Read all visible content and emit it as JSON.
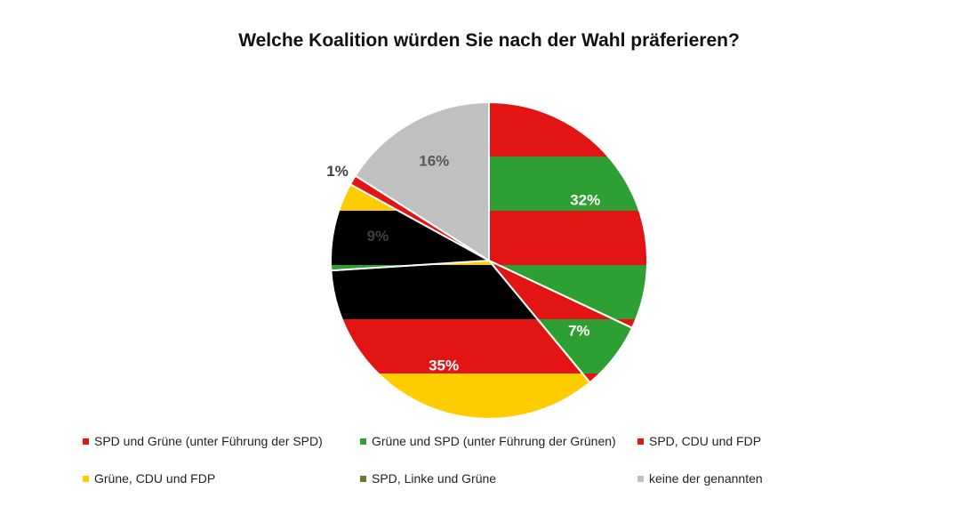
{
  "chart_data": {
    "type": "pie",
    "title": "Welche Koalition würden Sie nach der Wahl präferieren?",
    "labels": [
      "SPD und Grüne (unter Führung der SPD)",
      "Grüne und SPD (unter Führung der Grünen)",
      "SPD, CDU und FDP",
      "Grüne, CDU und FDP",
      "SPD, Linke und Grüne",
      "keine der genannten"
    ],
    "values": [
      32,
      7,
      35,
      9,
      1,
      16
    ],
    "data_labels": [
      "32%",
      "7%",
      "35%",
      "9%",
      "1%",
      "16%"
    ],
    "stripe_colors": [
      [
        "#e31414",
        "#2ea033"
      ],
      [
        "#2ea033",
        "#e31414"
      ],
      [
        "#000000",
        "#e31414",
        "#ffcc00"
      ],
      [
        "#2ea033",
        "#ffcc00",
        "#000000"
      ],
      [
        "#e31414"
      ],
      [
        "#c0c0c0"
      ]
    ],
    "legend_colors": [
      "#e31414",
      "#2ea033",
      "#e31414",
      "#ffcc00",
      "#6b7a2a",
      "#c0c0c0"
    ],
    "label_colors": [
      "#ffffff",
      "#ffffff",
      "#ffffff",
      "#404040",
      "#404040",
      "#595959"
    ],
    "legend_position": "bottom"
  }
}
